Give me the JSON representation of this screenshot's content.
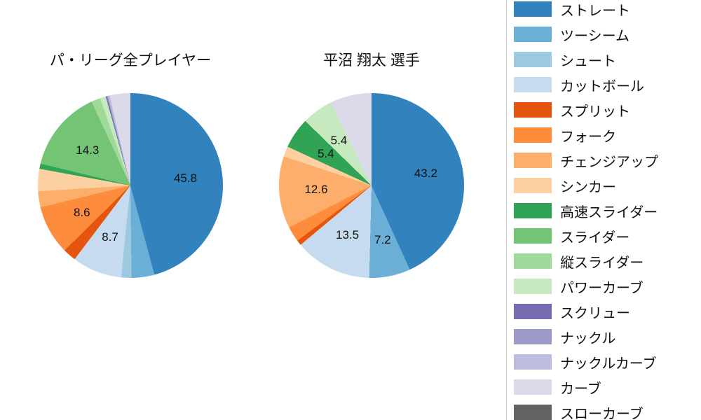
{
  "chart_data": {
    "type": "pie",
    "direction": "clockwise",
    "start_angle": "top",
    "legend_position": "right",
    "pct_distance": 0.6,
    "categories": [
      "ストレート",
      "ツーシーム",
      "シュート",
      "カットボール",
      "スプリット",
      "フォーク",
      "チェンジアップ",
      "シンカー",
      "高速スライダー",
      "スライダー",
      "縦スライダー",
      "パワーカーブ",
      "スクリュー",
      "ナックル",
      "ナックルカーブ",
      "カーブ",
      "スローカーブ"
    ],
    "colors": [
      "#3182bd",
      "#6baed6",
      "#9ecae1",
      "#c6dbef",
      "#e6550d",
      "#fd8d3c",
      "#fdae6b",
      "#fdd0a2",
      "#31a354",
      "#74c476",
      "#a1d99b",
      "#c7e9c0",
      "#756bb1",
      "#9e9ac8",
      "#bcbddc",
      "#dadaeb",
      "#636363"
    ],
    "series": [
      {
        "name": "パ・リーグ全プレイヤー",
        "values": [
          45.8,
          4.0,
          1.8,
          8.7,
          2.3,
          8.6,
          2.8,
          3.9,
          0.9,
          14.3,
          1.6,
          1.0,
          0.2,
          0.2,
          0.3,
          3.6,
          0
        ],
        "pct_labels": [
          "45.8",
          null,
          null,
          "8.7",
          null,
          "8.6",
          null,
          null,
          null,
          "14.3",
          null,
          null,
          null,
          null,
          null,
          null,
          null
        ]
      },
      {
        "name": "平沼 翔太 選手",
        "values": [
          43.2,
          7.2,
          0,
          13.5,
          0.9,
          2.7,
          12.6,
          1.8,
          5.4,
          0,
          0,
          5.4,
          0,
          0,
          0,
          7.3,
          0
        ],
        "pct_labels": [
          "43.2",
          "7.2",
          null,
          "13.5",
          null,
          null,
          "12.6",
          null,
          "5.4",
          null,
          null,
          "5.4",
          null,
          null,
          null,
          null,
          null
        ]
      }
    ]
  }
}
